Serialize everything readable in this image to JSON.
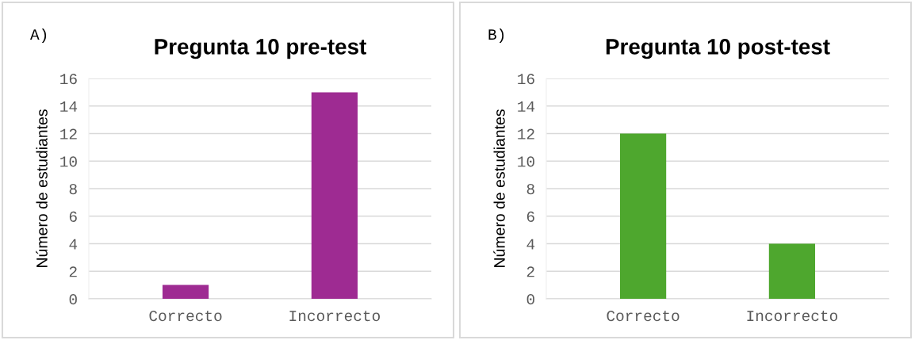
{
  "chart_data": [
    {
      "type": "bar",
      "title": "Pregunta 10 pre-test",
      "ylabel": "Número de estudiantes",
      "annotations": [
        "A)"
      ],
      "categories": [
        "Correcto",
        "Incorrecto"
      ],
      "values": [
        1,
        15
      ],
      "color": "#9e2b92",
      "ylim": [
        0,
        16
      ],
      "yticks": [
        0,
        2,
        4,
        6,
        8,
        10,
        12,
        14,
        16
      ],
      "grid": "y"
    },
    {
      "type": "bar",
      "title": "Pregunta 10 post-test",
      "ylabel": "Número de estudiantes",
      "annotations": [
        "B)"
      ],
      "categories": [
        "Correcto",
        "Incorrecto"
      ],
      "values": [
        12,
        4
      ],
      "color": "#4ea72e",
      "ylim": [
        0,
        16
      ],
      "yticks": [
        0,
        2,
        4,
        6,
        8,
        10,
        12,
        14,
        16
      ],
      "grid": "y"
    }
  ]
}
